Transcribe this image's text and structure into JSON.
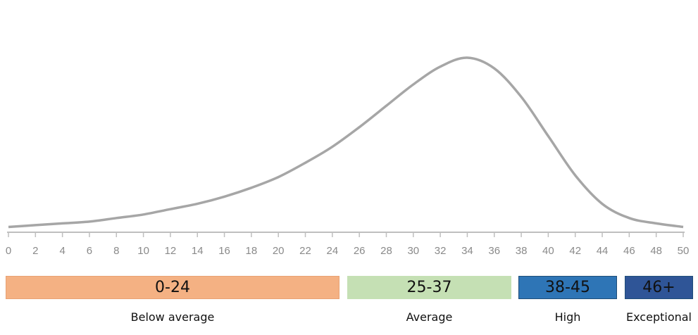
{
  "chart_data": {
    "type": "area",
    "title": "",
    "xlabel": "",
    "ylabel": "",
    "xlim": [
      0,
      50
    ],
    "x_ticks": [
      0,
      2,
      4,
      6,
      8,
      10,
      12,
      14,
      16,
      18,
      20,
      22,
      24,
      26,
      28,
      30,
      32,
      34,
      36,
      38,
      40,
      42,
      44,
      46,
      48,
      50
    ],
    "y_axis_shown": false,
    "grid": false,
    "series": [
      {
        "x": [
          0,
          2,
          4,
          6,
          8,
          10,
          12,
          14,
          16,
          18,
          20,
          22,
          24,
          26,
          28,
          30,
          32,
          34,
          36,
          38,
          40,
          42,
          44,
          46,
          48,
          50
        ],
        "y": [
          0.01,
          0.02,
          0.03,
          0.04,
          0.06,
          0.08,
          0.11,
          0.14,
          0.18,
          0.23,
          0.29,
          0.37,
          0.46,
          0.57,
          0.69,
          0.81,
          0.91,
          0.96,
          0.9,
          0.74,
          0.52,
          0.3,
          0.14,
          0.06,
          0.03,
          0.01
        ],
        "color": "#a6a6a6"
      }
    ],
    "bands": [
      {
        "range_label": "0-24",
        "caption": "Below average",
        "color": "#f4b183"
      },
      {
        "range_label": "25-37",
        "caption": "Average",
        "color": "#c5e0b4"
      },
      {
        "range_label": "38-45",
        "caption": "High",
        "color": "#2e75b6"
      },
      {
        "range_label": "46+",
        "caption": "Exceptional",
        "color": "#2f5597"
      }
    ]
  }
}
